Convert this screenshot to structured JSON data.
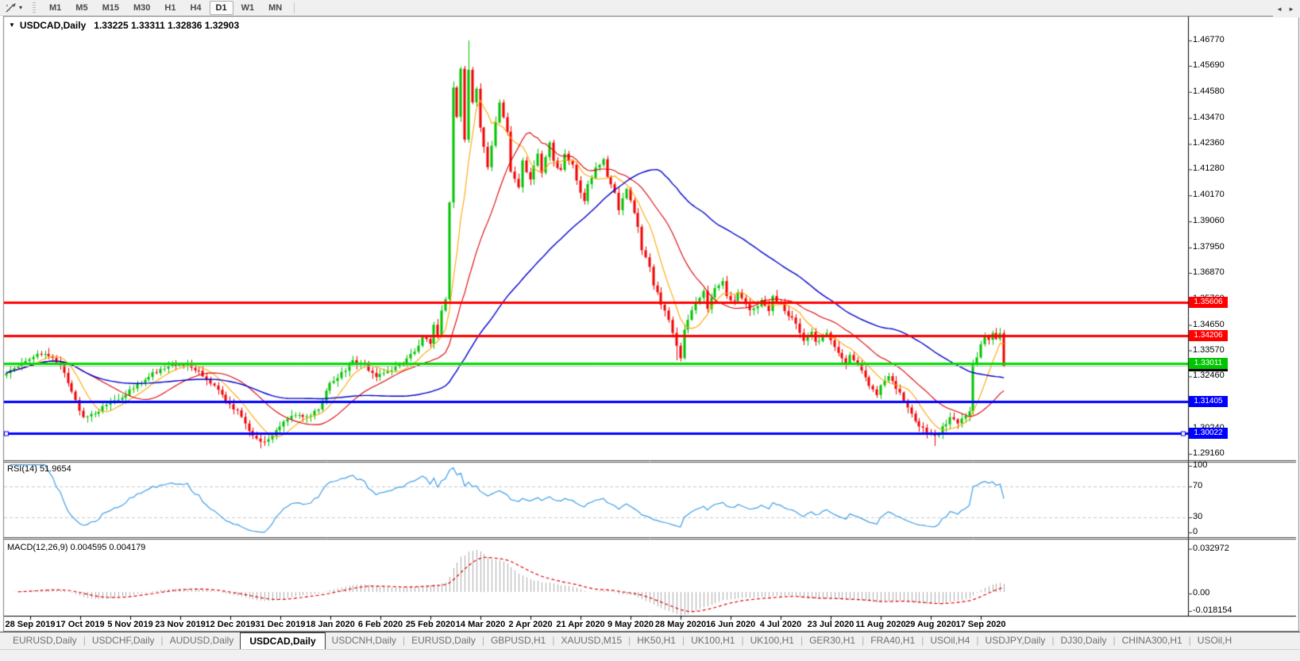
{
  "toolbar": {
    "cursor_tool_icon": "chart-cursor-icon",
    "dropdown_caret": "▾",
    "timeframes": [
      "M1",
      "M5",
      "M15",
      "M30",
      "H1",
      "H4",
      "D1",
      "W1",
      "MN"
    ],
    "active_timeframe": "D1"
  },
  "chart_header": {
    "dropdown_icon": "▼",
    "symbol_label": "USDCAD,Daily",
    "ohlc_text": "1.33225 1.33311 1.32836 1.32903"
  },
  "price_axis": {
    "ticks": [
      "1.46770",
      "1.45690",
      "1.44580",
      "1.43470",
      "1.42360",
      "1.41280",
      "1.40170",
      "1.39060",
      "1.37950",
      "1.36870",
      "1.35760",
      "1.34650",
      "1.33570",
      "1.32460",
      "1.31350",
      "1.30240",
      "1.29160"
    ],
    "badges": [
      {
        "label": "1.35606",
        "price": 1.35606,
        "color": "#ff0000"
      },
      {
        "label": "1.34206",
        "price": 1.34206,
        "color": "#ff0000"
      },
      {
        "label": "1.32903",
        "price": 1.32903,
        "color": "#000000"
      },
      {
        "label": "1.33011",
        "price": 1.33011,
        "color": "#00c400"
      },
      {
        "label": "1.31405",
        "price": 1.31405,
        "color": "#0000ff"
      },
      {
        "label": "1.30022",
        "price": 1.30022,
        "color": "#0000ff"
      }
    ]
  },
  "rsi_pane": {
    "label": "RSI(14)",
    "value": "51.9654",
    "axis_labels": [
      {
        "text": "100",
        "v": 100
      },
      {
        "text": "70",
        "v": 70
      },
      {
        "text": "30",
        "v": 30
      },
      {
        "text": "0",
        "v": 0
      }
    ],
    "levels": [
      70,
      30
    ]
  },
  "macd_pane": {
    "label": "MACD(12,26,9)",
    "values": "0.004595 0.004179",
    "axis_labels": [
      {
        "text": "0.032972",
        "v": 0.032972
      },
      {
        "text": "0.00",
        "v": 0
      },
      {
        "text": "-0.018154",
        "v": -0.018154
      }
    ]
  },
  "date_axis": [
    "28 Sep 2019",
    "17 Oct 2019",
    "5 Nov 2019",
    "23 Nov 2019",
    "12 Dec 2019",
    "31 Dec 2019",
    "18 Jan 2020",
    "6 Feb 2020",
    "25 Feb 2020",
    "14 Mar 2020",
    "2 Apr 2020",
    "21 Apr 2020",
    "9 May 2020",
    "28 May 2020",
    "16 Jun 2020",
    "4 Jul 2020",
    "23 Jul 2020",
    "11 Aug 2020",
    "29 Aug 2020",
    "17 Sep 2020"
  ],
  "tabs": {
    "items": [
      {
        "label": "EURUSD,Daily",
        "active": false
      },
      {
        "label": "USDCHF,Daily",
        "active": false
      },
      {
        "label": "AUDUSD,Daily",
        "active": false
      },
      {
        "label": "USDCAD,Daily",
        "active": true
      },
      {
        "label": "USDCNH,Daily",
        "active": false
      },
      {
        "label": "EURUSD,Daily",
        "active": false
      },
      {
        "label": "GBPUSD,H1",
        "active": false
      },
      {
        "label": "XAUUSD,M15",
        "active": false
      },
      {
        "label": "HK50,H1",
        "active": false
      },
      {
        "label": "UK100,H1",
        "active": false
      },
      {
        "label": "UK100,H1",
        "active": false
      },
      {
        "label": "GER30,H1",
        "active": false
      },
      {
        "label": "FRA40,H1",
        "active": false
      },
      {
        "label": "USOil,H4",
        "active": false
      },
      {
        "label": "USDJPY,Daily",
        "active": false
      },
      {
        "label": "DJ30,Daily",
        "active": false
      },
      {
        "label": "CHINA300,H1",
        "active": false
      },
      {
        "label": "USOil,H",
        "active": false
      }
    ],
    "scroll_left_icon": "◄",
    "scroll_right_icon": "►"
  },
  "chart_data": {
    "type": "candlestick",
    "symbol": "USDCAD",
    "timeframe": "Daily",
    "ohlc_display": {
      "open": "1.33225",
      "high": "1.33311",
      "low": "1.32836",
      "close": "1.32903"
    },
    "visible_price_range": {
      "max": 1.4677,
      "min": 1.2916
    },
    "dates": [
      "28 Sep 2019",
      "17 Oct 2019",
      "5 Nov 2019",
      "23 Nov 2019",
      "12 Dec 2019",
      "31 Dec 2019",
      "18 Jan 2020",
      "6 Feb 2020",
      "25 Feb 2020",
      "14 Mar 2020",
      "2 Apr 2020",
      "21 Apr 2020",
      "9 May 2020",
      "28 May 2020",
      "16 Jun 2020",
      "4 Jul 2020",
      "23 Jul 2020",
      "11 Aug 2020",
      "29 Aug 2020",
      "17 Sep 2020"
    ],
    "price_waypoints": {
      "indices": [
        0,
        5,
        8,
        11,
        14,
        17,
        20,
        23,
        27,
        31,
        34,
        38,
        42,
        45,
        48,
        52,
        55,
        58,
        61,
        64,
        66,
        69,
        72,
        75,
        78,
        81,
        84,
        87,
        90,
        93,
        96,
        99,
        103,
        106,
        108,
        110,
        111,
        112,
        113,
        114,
        115,
        116,
        117,
        118,
        119,
        120,
        121,
        122,
        123,
        124,
        125,
        127,
        128,
        130,
        131,
        133,
        134,
        136,
        138,
        139,
        141,
        142,
        144,
        145,
        147,
        148,
        150,
        151,
        153,
        155,
        156,
        158,
        159,
        161,
        162,
        164,
        165,
        167,
        168,
        170,
        172,
        173,
        175,
        176,
        178,
        179,
        181,
        182,
        184,
        186,
        187,
        189,
        190,
        192,
        193,
        195,
        196,
        198,
        199,
        201,
        202,
        204,
        206,
        207,
        209,
        210,
        212,
        213,
        215,
        217,
        218,
        219,
        221,
        223,
        224,
        226,
        227,
        229,
        230,
        232,
        233,
        236,
        239,
        241,
        243,
        245,
        247,
        249,
        250,
        251,
        252,
        253,
        254,
        255,
        256,
        257,
        258,
        259
      ],
      "closes": [
        1.326,
        1.332,
        1.3345,
        1.333,
        1.33,
        1.318,
        1.307,
        1.309,
        1.314,
        1.317,
        1.321,
        1.326,
        1.3295,
        1.33,
        1.329,
        1.324,
        1.318,
        1.313,
        1.308,
        1.299,
        1.296,
        1.299,
        1.305,
        1.308,
        1.307,
        1.311,
        1.322,
        1.326,
        1.331,
        1.329,
        1.325,
        1.327,
        1.33,
        1.335,
        1.342,
        1.339,
        1.346,
        1.342,
        1.352,
        1.357,
        1.398,
        1.447,
        1.436,
        1.455,
        1.425,
        1.456,
        1.442,
        1.448,
        1.43,
        1.423,
        1.414,
        1.433,
        1.442,
        1.428,
        1.411,
        1.405,
        1.416,
        1.409,
        1.419,
        1.412,
        1.424,
        1.416,
        1.412,
        1.419,
        1.414,
        1.408,
        1.399,
        1.406,
        1.413,
        1.417,
        1.41,
        1.402,
        1.396,
        1.404,
        1.399,
        1.389,
        1.379,
        1.371,
        1.364,
        1.356,
        1.348,
        1.343,
        1.333,
        1.344,
        1.352,
        1.356,
        1.361,
        1.354,
        1.362,
        1.366,
        1.358,
        1.356,
        1.361,
        1.355,
        1.353,
        1.355,
        1.357,
        1.353,
        1.358,
        1.355,
        1.352,
        1.349,
        1.344,
        1.34,
        1.344,
        1.339,
        1.342,
        1.344,
        1.337,
        1.333,
        1.33,
        1.334,
        1.33,
        1.325,
        1.321,
        1.316,
        1.32,
        1.324,
        1.322,
        1.318,
        1.315,
        1.306,
        1.3,
        1.2985,
        1.3035,
        1.3065,
        1.3045,
        1.3075,
        1.3105,
        1.33,
        1.333,
        1.338,
        1.342,
        1.3395,
        1.343,
        1.3405,
        1.3425,
        1.329
      ]
    },
    "extremes": [
      {
        "i": 120,
        "high": 1.4677
      },
      {
        "i": 66,
        "low": 1.294
      },
      {
        "i": 174,
        "low": 1.3315
      },
      {
        "i": 241,
        "low": 1.295
      }
    ],
    "hlines": [
      {
        "price": 1.35606,
        "color": "#ff0000",
        "width": 3,
        "selected": false
      },
      {
        "price": 1.34206,
        "color": "#ff0000",
        "width": 3,
        "selected": false
      },
      {
        "price": 1.33011,
        "color": "#00dd00",
        "width": 3,
        "selected": false
      },
      {
        "price": 1.31405,
        "color": "#0000ff",
        "width": 3,
        "selected": false
      },
      {
        "price": 1.30022,
        "color": "#0000ff",
        "width": 3,
        "selected": true
      }
    ],
    "bid_line": {
      "price": 1.32903,
      "color": "#bebebe"
    },
    "moving_averages": [
      {
        "period": 8,
        "color": "#ffa500"
      },
      {
        "period": 21,
        "color": "#dc0000"
      },
      {
        "period": 55,
        "color": "#0000cc"
      }
    ],
    "indicators": {
      "rsi": {
        "period": 14,
        "current": 51.9654,
        "levels": [
          30,
          70
        ],
        "color": "#3f9fe8"
      },
      "macd": {
        "fast": 12,
        "slow": 26,
        "signal": 9,
        "current_macd": 0.004595,
        "current_signal": 0.004179,
        "hist_color": "#ababab",
        "signal_color": "#e00000",
        "axis_max": 0.032972,
        "axis_min": -0.018154
      }
    },
    "colors": {
      "up": "#00c400",
      "down": "#f20000",
      "background": "#ffffff"
    }
  }
}
